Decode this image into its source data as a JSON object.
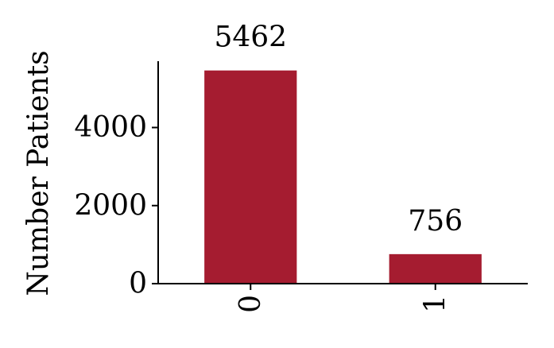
{
  "chart_data": {
    "type": "bar",
    "categories": [
      "0",
      "1"
    ],
    "values": [
      5462,
      756
    ],
    "data_labels": [
      "5462",
      "756"
    ],
    "title": "",
    "xlabel": "",
    "ylabel": "Number Patients",
    "ylim": [
      0,
      5700
    ],
    "yticks": [
      0,
      2000,
      4000
    ],
    "ytick_labels": [
      "0",
      "2000",
      "4000"
    ],
    "xtick_rotation": "vertical",
    "grid": false,
    "legend": "none",
    "colors": {
      "bar": "#a51c30",
      "axis": "#000000"
    }
  }
}
